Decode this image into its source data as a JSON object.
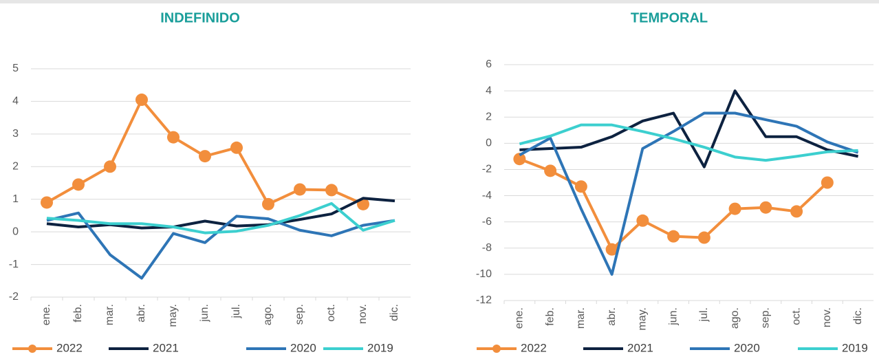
{
  "chart_data": [
    {
      "type": "line",
      "title": "INDEFINIDO",
      "categories": [
        "ene.",
        "feb.",
        "mar.",
        "abr.",
        "may.",
        "jun.",
        "jul.",
        "ago.",
        "sep.",
        "oct.",
        "nov.",
        "dic."
      ],
      "ylim": [
        -2,
        5
      ],
      "yticks": [
        -2,
        -1,
        0,
        1,
        2,
        3,
        4,
        5
      ],
      "grid": true,
      "legend": "bottom",
      "series": [
        {
          "name": "2022",
          "color": "#f28e3c",
          "marker": true,
          "values": [
            0.9,
            1.45,
            2.0,
            4.05,
            2.9,
            2.32,
            2.58,
            0.85,
            1.3,
            1.28,
            0.85,
            null
          ]
        },
        {
          "name": "2021",
          "color": "#0d2240",
          "values": [
            0.25,
            0.15,
            0.22,
            0.12,
            0.15,
            0.33,
            0.18,
            0.22,
            0.38,
            0.55,
            1.03,
            0.95
          ]
        },
        {
          "name": "2020",
          "color": "#2e75b6",
          "values": [
            0.35,
            0.58,
            -0.7,
            -1.42,
            -0.05,
            -0.33,
            0.48,
            0.4,
            0.05,
            -0.12,
            0.2,
            0.35
          ]
        },
        {
          "name": "2019",
          "color": "#3ccfcf",
          "values": [
            0.42,
            0.35,
            0.25,
            0.25,
            0.15,
            -0.03,
            0.02,
            0.2,
            0.5,
            0.87,
            0.05,
            0.35
          ]
        }
      ]
    },
    {
      "type": "line",
      "title": "TEMPORAL",
      "categories": [
        "ene.",
        "feb.",
        "mar.",
        "abr.",
        "may.",
        "jun.",
        "jul.",
        "ago.",
        "sep.",
        "oct.",
        "nov.",
        "dic."
      ],
      "ylim": [
        -12,
        6
      ],
      "yticks": [
        -12,
        -10,
        -8,
        -6,
        -4,
        -2,
        0,
        2,
        4,
        6
      ],
      "grid": true,
      "legend": "bottom",
      "series": [
        {
          "name": "2022",
          "color": "#f28e3c",
          "marker": true,
          "values": [
            -1.2,
            -2.1,
            -3.3,
            -8.1,
            -5.9,
            -7.1,
            -7.2,
            -5.0,
            -4.9,
            -5.2,
            -3.0,
            null
          ]
        },
        {
          "name": "2021",
          "color": "#0d2240",
          "values": [
            -0.5,
            -0.4,
            -0.3,
            0.5,
            1.7,
            2.3,
            -1.8,
            4.0,
            0.5,
            0.5,
            -0.5,
            -1.0
          ]
        },
        {
          "name": "2020",
          "color": "#2e75b6",
          "values": [
            -0.9,
            0.4,
            -5.0,
            -10.0,
            -0.4,
            0.9,
            2.3,
            2.3,
            1.8,
            1.3,
            0.1,
            -0.7
          ]
        },
        {
          "name": "2019",
          "color": "#3ccfcf",
          "values": [
            -0.05,
            0.55,
            1.4,
            1.4,
            0.9,
            0.35,
            -0.3,
            -1.05,
            -1.3,
            -1.0,
            -0.65,
            -0.55
          ]
        }
      ]
    }
  ]
}
